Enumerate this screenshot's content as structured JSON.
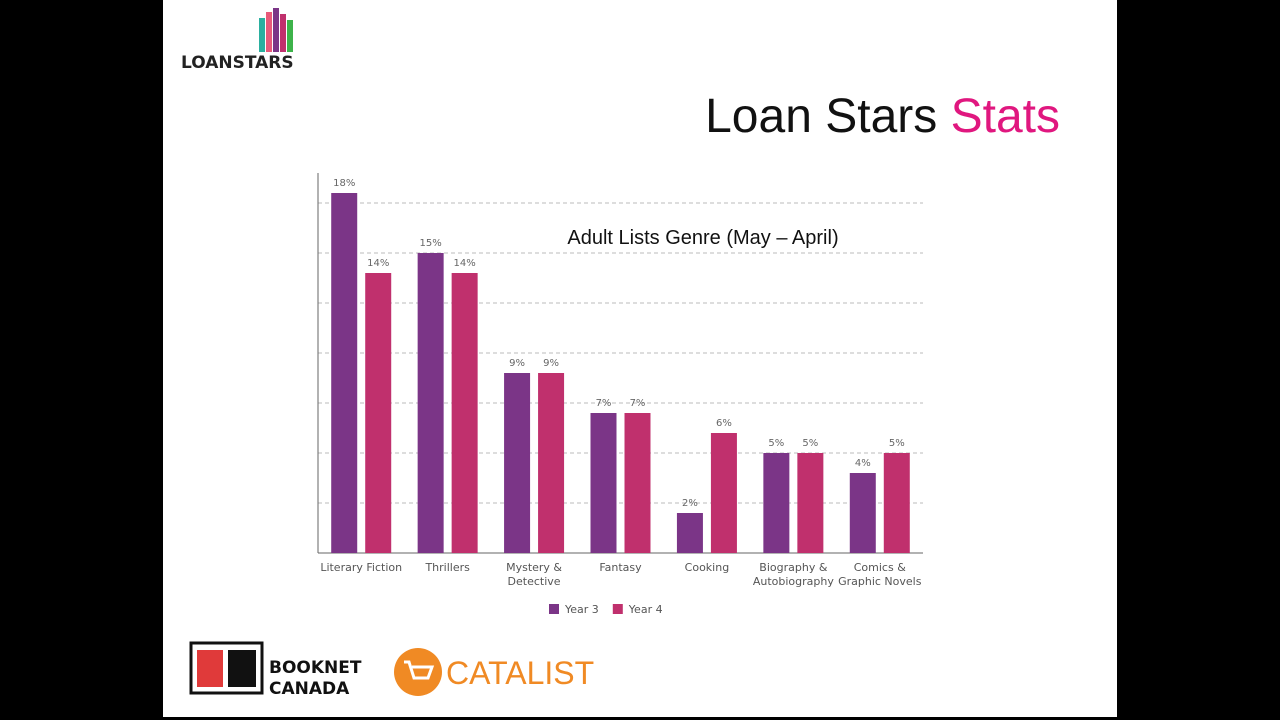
{
  "slide_title": {
    "plain": "Loan Stars",
    "accent": "Stats"
  },
  "logos": {
    "loanstars": "LOANSTARS",
    "booknet": [
      "BOOKNET",
      "CANADA"
    ],
    "catalist": "CATALIST"
  },
  "chart_data": {
    "type": "bar",
    "title": "Adult Lists Genre (May – April)",
    "categories": [
      "Literary Fiction",
      "Thrillers",
      "Mystery & Detective",
      "Fantasy",
      "Cooking",
      "Biography & Autobiography",
      "Comics & Graphic Novels"
    ],
    "series": [
      {
        "name": "Year 3",
        "color": "#7b3587",
        "values": [
          18,
          15,
          9,
          7,
          2,
          5,
          4
        ],
        "value_labels": [
          "18%",
          "15%",
          "9%",
          "7%",
          "2%",
          "5%",
          "4%"
        ]
      },
      {
        "name": "Year 4",
        "color": "#c0306d",
        "values": [
          14,
          14,
          9,
          7,
          6,
          5,
          5
        ],
        "value_labels": [
          "14%",
          "14%",
          "9%",
          "7%",
          "6%",
          "5%",
          "5%"
        ]
      }
    ],
    "ylim": [
      0,
      19
    ],
    "yticks": [
      2.5,
      5,
      7.5,
      10,
      12.5,
      15,
      17.5
    ],
    "grid": true,
    "legend": "bottom"
  }
}
